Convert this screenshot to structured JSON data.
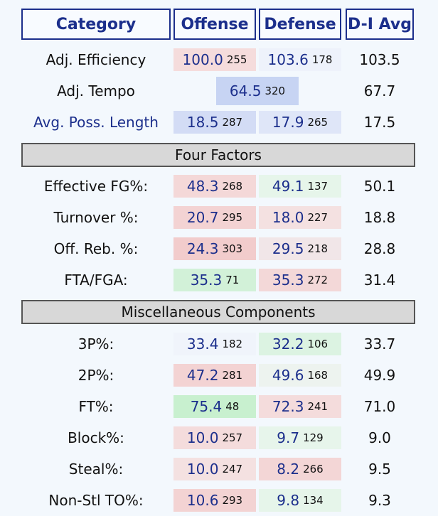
{
  "headers": {
    "category": "Category",
    "offense": "Offense",
    "defense": "Defense",
    "avg": "D-I Avg"
  },
  "top_rows": [
    {
      "label": "Adj. Efficiency",
      "off": "100.0",
      "off_rank": "255",
      "def": "103.6",
      "def_rank": "178",
      "avg": "103.5",
      "off_bg": "#f5dcdc",
      "def_bg": "#eef2fb"
    },
    {
      "label": "Adj. Tempo",
      "tempo": "64.5",
      "tempo_rank": "320",
      "avg": "67.7",
      "tempo_bg": "#c7d4f3"
    },
    {
      "label": "Avg. Poss. Length",
      "off": "18.5",
      "off_rank": "287",
      "def": "17.9",
      "def_rank": "265",
      "avg": "17.5",
      "off_bg": "#d3dcf5",
      "def_bg": "#dfe6f8"
    }
  ],
  "sections": [
    {
      "title": "Four Factors",
      "rows": [
        {
          "label": "Effective FG%:",
          "off": "48.3",
          "off_rank": "268",
          "def": "49.1",
          "def_rank": "137",
          "avg": "50.1",
          "off_bg": "#f4d8d8",
          "def_bg": "#e6f5ea"
        },
        {
          "label": "Turnover %:",
          "off": "20.7",
          "off_rank": "295",
          "def": "18.0",
          "def_rank": "227",
          "avg": "18.8",
          "off_bg": "#f3d3d3",
          "def_bg": "#f4e1e1"
        },
        {
          "label": "Off. Reb. %:",
          "off": "24.3",
          "off_rank": "303",
          "def": "29.5",
          "def_rank": "218",
          "avg": "28.8",
          "off_bg": "#f2cccc",
          "def_bg": "#f1e6e8"
        },
        {
          "label": "FTA/FGA:",
          "off": "35.3",
          "off_rank": "71",
          "def": "35.3",
          "def_rank": "272",
          "avg": "31.4",
          "off_bg": "#d2f1d8",
          "def_bg": "#f3d8d8"
        }
      ]
    },
    {
      "title": "Miscellaneous Components",
      "rows": [
        {
          "label": "3P%:",
          "off": "33.4",
          "off_rank": "182",
          "def": "32.2",
          "def_rank": "106",
          "avg": "33.7",
          "off_bg": "#f0f4fb",
          "def_bg": "#dcf3e2"
        },
        {
          "label": "2P%:",
          "off": "47.2",
          "off_rank": "281",
          "def": "49.6",
          "def_rank": "168",
          "avg": "49.9",
          "off_bg": "#f3d3d3",
          "def_bg": "#edf3ef"
        },
        {
          "label": "FT%:",
          "off": "75.4",
          "off_rank": "48",
          "def": "72.3",
          "def_rank": "241",
          "avg": "71.0",
          "off_bg": "#c8f0cf",
          "def_bg": "#f4dcdc"
        },
        {
          "label": "Block%:",
          "off": "10.0",
          "off_rank": "257",
          "def": "9.7",
          "def_rank": "129",
          "avg": "9.0",
          "off_bg": "#f4dcdc",
          "def_bg": "#e7f5eb"
        },
        {
          "label": "Steal%:",
          "off": "10.0",
          "off_rank": "247",
          "def": "8.2",
          "def_rank": "266",
          "avg": "9.5",
          "off_bg": "#f4e1e1",
          "def_bg": "#f3d6d6"
        },
        {
          "label": "Non-Stl TO%:",
          "off": "10.6",
          "off_rank": "293",
          "def": "9.8",
          "def_rank": "134",
          "avg": "9.3",
          "off_bg": "#f3d3d3",
          "def_bg": "#e6f5ea"
        }
      ]
    }
  ]
}
